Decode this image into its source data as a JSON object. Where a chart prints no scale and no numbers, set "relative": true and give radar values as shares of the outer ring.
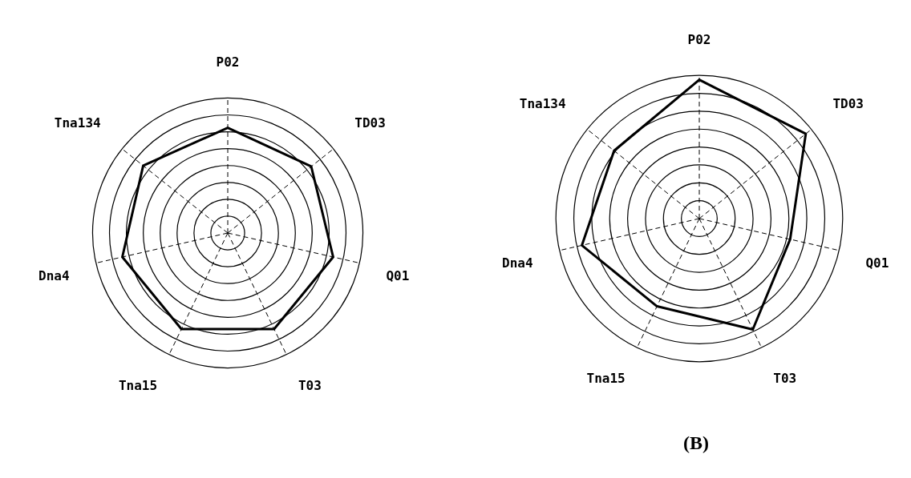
{
  "chart_data": [
    {
      "type": "radar",
      "categories": [
        "P02",
        "TD03",
        "Q01",
        "T03",
        "Tna15",
        "Dna4",
        "Tna134"
      ],
      "relative": true,
      "grid": true,
      "legend": false,
      "marker": "none",
      "series": [
        {
          "color": "#000000",
          "values": [
            0.78,
            0.79,
            0.8,
            0.79,
            0.79,
            0.8,
            0.8
          ]
        }
      ]
    },
    {
      "type": "radar",
      "categories": [
        "P02",
        "TD03",
        "Q01",
        "T03",
        "Tna15",
        "Dna4",
        "Tna134"
      ],
      "relative": true,
      "grid": true,
      "legend": false,
      "marker": "none",
      "annotations": [
        "(B)"
      ],
      "series": [
        {
          "color": "#000000",
          "values": [
            0.97,
            0.95,
            0.65,
            0.86,
            0.68,
            0.84,
            0.76
          ]
        }
      ]
    }
  ]
}
